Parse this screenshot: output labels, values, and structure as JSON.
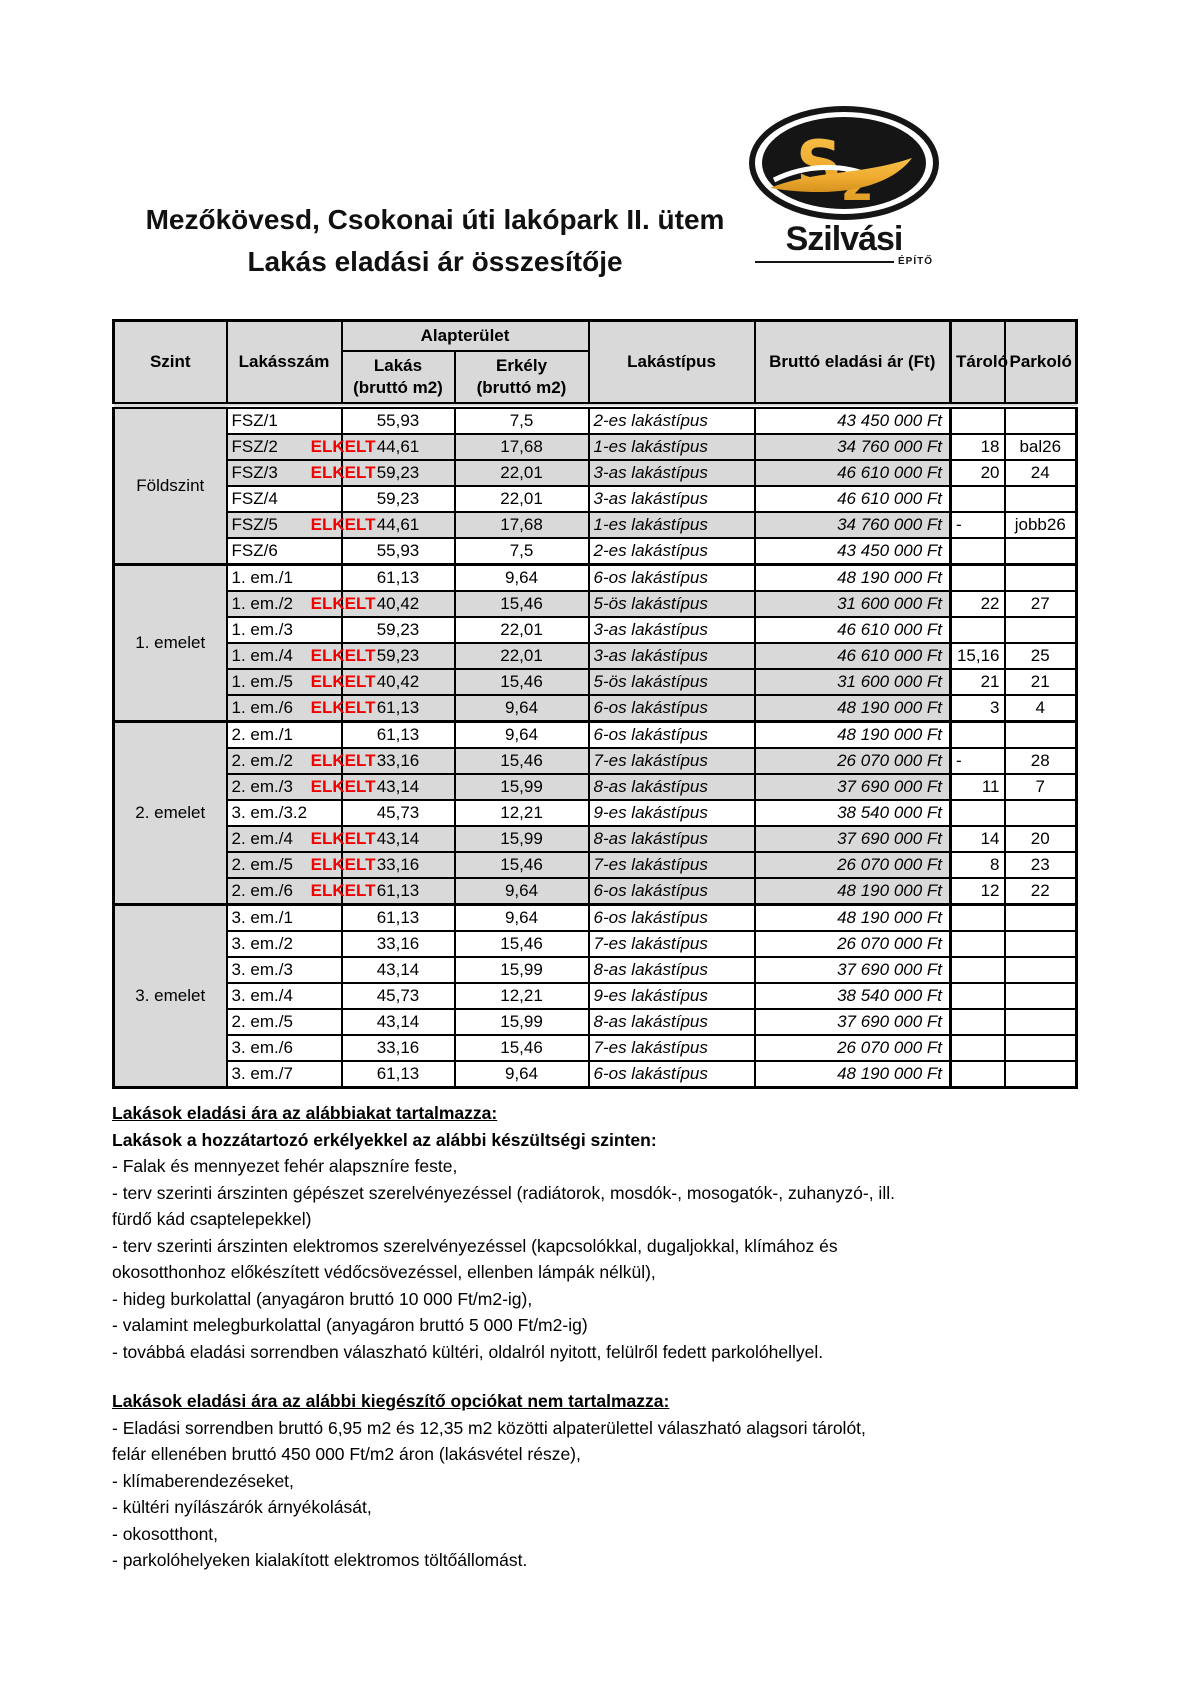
{
  "title": {
    "line1": "Mezőkövesd, Csokonai úti lakópark II. ütem",
    "line2": "Lakás eladási ár összesítője"
  },
  "logo": {
    "monogram": "Sz",
    "name": "Szilvási",
    "tagline": "ÉPÍTŐ"
  },
  "colors": {
    "table_gray": "#D9D9D9",
    "sold_red": "#F00000",
    "logo_gold": "#EFAC2F",
    "logo_black": "#151515"
  },
  "table": {
    "sold_label": "ELKELT",
    "headers": {
      "szint": "Szint",
      "lakasszam": "Lakásszám",
      "alapterulet": "Alapterület",
      "lakas_line1": "Lakás",
      "lakas_line2": "(bruttó m2)",
      "erkely_line1": "Erkély",
      "erkely_line2": "(bruttó m2)",
      "lakastipus": "Lakástípus",
      "ar": "Bruttó eladási ár (Ft)",
      "tarolo": "Tároló",
      "parkolo": "Parkoló"
    },
    "sections": [
      {
        "floor": "Földszint",
        "rows": [
          {
            "apt": "FSZ/1",
            "sold": false,
            "flat": "55,93",
            "balcony": "7,5",
            "type": "2-es lakástípus",
            "price": "43 450 000 Ft",
            "storage": "",
            "parking": ""
          },
          {
            "apt": "FSZ/2",
            "sold": true,
            "flat": "44,61",
            "balcony": "17,68",
            "type": "1-es lakástípus",
            "price": "34 760 000 Ft",
            "storage": "18",
            "parking": "bal26"
          },
          {
            "apt": "FSZ/3",
            "sold": true,
            "flat": "59,23",
            "balcony": "22,01",
            "type": "3-as lakástípus",
            "price": "46 610 000 Ft",
            "storage": "20",
            "parking": "24"
          },
          {
            "apt": "FSZ/4",
            "sold": false,
            "flat": "59,23",
            "balcony": "22,01",
            "type": "3-as lakástípus",
            "price": "46 610 000 Ft",
            "storage": "",
            "parking": ""
          },
          {
            "apt": "FSZ/5",
            "sold": true,
            "flat": "44,61",
            "balcony": "17,68",
            "type": "1-es lakástípus",
            "price": "34 760 000 Ft",
            "storage": "-",
            "parking": "jobb26"
          },
          {
            "apt": "FSZ/6",
            "sold": false,
            "flat": "55,93",
            "balcony": "7,5",
            "type": "2-es lakástípus",
            "price": "43 450 000 Ft",
            "storage": "",
            "parking": ""
          }
        ]
      },
      {
        "floor": "1. emelet",
        "rows": [
          {
            "apt": "1. em./1",
            "sold": false,
            "flat": "61,13",
            "balcony": "9,64",
            "type": "6-os lakástípus",
            "price": "48 190 000 Ft",
            "storage": "",
            "parking": ""
          },
          {
            "apt": "1. em./2",
            "sold": true,
            "flat": "40,42",
            "balcony": "15,46",
            "type": "5-ös lakástípus",
            "price": "31 600 000 Ft",
            "storage": "22",
            "parking": "27"
          },
          {
            "apt": "1. em./3",
            "sold": false,
            "flat": "59,23",
            "balcony": "22,01",
            "type": "3-as lakástípus",
            "price": "46 610 000 Ft",
            "storage": "",
            "parking": ""
          },
          {
            "apt": "1. em./4",
            "sold": true,
            "flat": "59,23",
            "balcony": "22,01",
            "type": "3-as lakástípus",
            "price": "46 610 000 Ft",
            "storage": "15,16",
            "parking": "25"
          },
          {
            "apt": "1. em./5",
            "sold": true,
            "flat": "40,42",
            "balcony": "15,46",
            "type": "5-ös lakástípus",
            "price": "31 600 000 Ft",
            "storage": "21",
            "parking": "21"
          },
          {
            "apt": "1. em./6",
            "sold": true,
            "flat": "61,13",
            "balcony": "9,64",
            "type": "6-os lakástípus",
            "price": "48 190 000 Ft",
            "storage": "3",
            "parking": "4"
          }
        ]
      },
      {
        "floor": "2. emelet",
        "rows": [
          {
            "apt": "2. em./1",
            "sold": false,
            "flat": "61,13",
            "balcony": "9,64",
            "type": "6-os lakástípus",
            "price": "48 190 000 Ft",
            "storage": "",
            "parking": ""
          },
          {
            "apt": "2. em./2",
            "sold": true,
            "flat": "33,16",
            "balcony": "15,46",
            "type": "7-es lakástípus",
            "price": "26 070 000 Ft",
            "storage": "-",
            "parking": "28"
          },
          {
            "apt": "2. em./3",
            "sold": true,
            "flat": "43,14",
            "balcony": "15,99",
            "type": "8-as lakástípus",
            "price": "37 690 000 Ft",
            "storage": "11",
            "parking": "7"
          },
          {
            "apt": "3. em./3.2",
            "sold": false,
            "flat": "45,73",
            "balcony": "12,21",
            "type": "9-es lakástípus",
            "price": "38 540 000 Ft",
            "storage": "",
            "parking": ""
          },
          {
            "apt": "2. em./4",
            "sold": true,
            "flat": "43,14",
            "balcony": "15,99",
            "type": "8-as lakástípus",
            "price": "37 690 000 Ft",
            "storage": "14",
            "parking": "20"
          },
          {
            "apt": "2. em./5",
            "sold": true,
            "flat": "33,16",
            "balcony": "15,46",
            "type": "7-es lakástípus",
            "price": "26 070 000 Ft",
            "storage": "8",
            "parking": "23"
          },
          {
            "apt": "2. em./6",
            "sold": true,
            "flat": "61,13",
            "balcony": "9,64",
            "type": "6-os lakástípus",
            "price": "48 190 000 Ft",
            "storage": "12",
            "parking": "22"
          }
        ]
      },
      {
        "floor": "3. emelet",
        "rows": [
          {
            "apt": "3. em./1",
            "sold": false,
            "flat": "61,13",
            "balcony": "9,64",
            "type": "6-os lakástípus",
            "price": "48 190 000 Ft",
            "storage": "",
            "parking": ""
          },
          {
            "apt": "3. em./2",
            "sold": false,
            "flat": "33,16",
            "balcony": "15,46",
            "type": "7-es lakástípus",
            "price": "26 070 000 Ft",
            "storage": "",
            "parking": ""
          },
          {
            "apt": "3. em./3",
            "sold": false,
            "flat": "43,14",
            "balcony": "15,99",
            "type": "8-as lakástípus",
            "price": "37 690 000 Ft",
            "storage": "",
            "parking": ""
          },
          {
            "apt": "3. em./4",
            "sold": false,
            "flat": "45,73",
            "balcony": "12,21",
            "type": "9-es lakástípus",
            "price": "38 540 000 Ft",
            "storage": "",
            "parking": ""
          },
          {
            "apt": "2. em./5",
            "sold": false,
            "flat": "43,14",
            "balcony": "15,99",
            "type": "8-as lakástípus",
            "price": "37 690 000 Ft",
            "storage": "",
            "parking": ""
          },
          {
            "apt": "3. em./6",
            "sold": false,
            "flat": "33,16",
            "balcony": "15,46",
            "type": "7-es lakástípus",
            "price": "26 070 000 Ft",
            "storage": "",
            "parking": ""
          },
          {
            "apt": "3. em./7",
            "sold": false,
            "flat": "61,13",
            "balcony": "9,64",
            "type": "6-os lakástípus",
            "price": "48 190 000 Ft",
            "storage": "",
            "parking": ""
          }
        ]
      }
    ]
  },
  "notes": [
    {
      "lines": [
        {
          "text": "Lakások eladási ára az alábbiakat tartalmazza:",
          "style": "heading"
        },
        {
          "text": "Lakások a hozzátartozó erkélyekkel az alábbi készültségi szinten:",
          "style": "bold"
        },
        {
          "text": "- Falak és mennyezet fehér alapszníre feste,",
          "style": ""
        },
        {
          "text": "- terv szerinti árszinten gépészet szerelvényezéssel (radiátorok, mosdók-, mosogatók-, zuhanyzó-, ill.",
          "style": ""
        },
        {
          "text": "fürdő kád csaptelepekkel)",
          "style": ""
        },
        {
          "text": "- terv szerinti árszinten elektromos szerelvényezéssel (kapcsolókkal, dugaljokkal, klímához és",
          "style": ""
        },
        {
          "text": "okosotthonhoz előkészített védőcsövezéssel, ellenben lámpák nélkül),",
          "style": ""
        },
        {
          "text": "- hideg burkolattal (anyagáron bruttó 10 000 Ft/m2-ig),",
          "style": ""
        },
        {
          "text": "- valamint melegburkolattal (anyagáron bruttó 5 000 Ft/m2-ig)",
          "style": ""
        },
        {
          "text": "- továbbá eladási sorrendben válaszható kültéri, oldalról nyitott, felülről fedett parkolóhellyel.",
          "style": ""
        }
      ]
    },
    {
      "lines": [
        {
          "text": "Lakások eladási ára az alábbi kiegészítő opciókat nem tartalmazza:",
          "style": "heading"
        },
        {
          "text": "- Eladási sorrendben bruttó 6,95 m2 és 12,35 m2 közötti alpaterülettel válaszható alagsori tárolót,",
          "style": ""
        },
        {
          "text": "felár ellenében bruttó 450 000 Ft/m2 áron (lakásvétel része),",
          "style": ""
        },
        {
          "text": "- klímaberendezéseket,",
          "style": ""
        },
        {
          "text": "- kültéri nyílászárók árnyékolását,",
          "style": ""
        },
        {
          "text": "- okosotthont,",
          "style": ""
        },
        {
          "text": "- parkolóhelyeken kialakított elektromos töltőállomást.",
          "style": ""
        }
      ]
    }
  ]
}
